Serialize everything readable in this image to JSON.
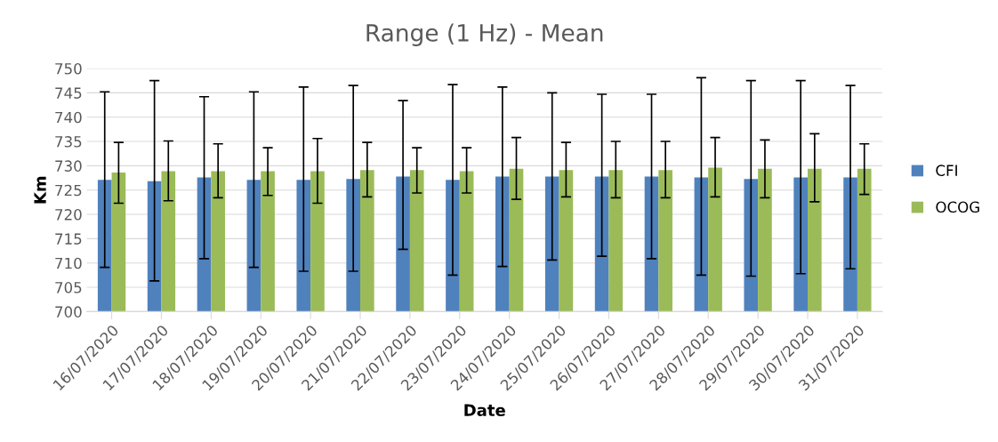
{
  "chart_data": {
    "type": "bar",
    "title": "Range (1 Hz) - Mean",
    "xlabel": "Date",
    "ylabel": "Km",
    "categories": [
      "16/07/2020",
      "17/07/2020",
      "18/07/2020",
      "19/07/2020",
      "20/07/2020",
      "21/07/2020",
      "22/07/2020",
      "23/07/2020",
      "24/07/2020",
      "25/07/2020",
      "26/07/2020",
      "27/07/2020",
      "28/07/2020",
      "29/07/2020",
      "30/07/2020",
      "31/07/2020"
    ],
    "series": [
      {
        "name": "CFI",
        "color": "#4f81bd",
        "values": [
          727.1,
          726.8,
          727.6,
          727.1,
          727.1,
          727.3,
          727.8,
          727.1,
          727.8,
          727.8,
          727.8,
          727.8,
          727.6,
          727.3,
          727.6,
          727.6
        ],
        "errors": [
          [
            709.1,
            745.2
          ],
          [
            706.3,
            747.5
          ],
          [
            710.9,
            744.2
          ],
          [
            709.1,
            745.2
          ],
          [
            708.3,
            746.2
          ],
          [
            708.3,
            746.5
          ],
          [
            712.8,
            743.4
          ],
          [
            707.5,
            746.7
          ],
          [
            709.3,
            746.2
          ],
          [
            710.6,
            745.0
          ],
          [
            711.4,
            744.7
          ],
          [
            710.9,
            744.7
          ],
          [
            707.5,
            748.1
          ],
          [
            707.3,
            747.5
          ],
          [
            707.8,
            747.5
          ],
          [
            708.8,
            746.5
          ]
        ]
      },
      {
        "name": "OCOG",
        "color": "#9bbb59",
        "values": [
          728.6,
          728.9,
          728.9,
          728.9,
          728.9,
          729.1,
          729.1,
          728.9,
          729.4,
          729.1,
          729.1,
          729.1,
          729.6,
          729.4,
          729.4,
          729.4
        ],
        "errors": [
          [
            722.3,
            734.8
          ],
          [
            722.8,
            735.1
          ],
          [
            723.4,
            734.5
          ],
          [
            723.9,
            733.7
          ],
          [
            722.3,
            735.6
          ],
          [
            723.6,
            734.8
          ],
          [
            724.4,
            733.7
          ],
          [
            724.4,
            733.7
          ],
          [
            723.1,
            735.8
          ],
          [
            723.6,
            734.8
          ],
          [
            723.4,
            735.0
          ],
          [
            723.4,
            735.0
          ],
          [
            723.6,
            735.8
          ],
          [
            723.4,
            735.3
          ],
          [
            722.6,
            736.6
          ],
          [
            724.1,
            734.5
          ]
        ]
      }
    ],
    "ylim": [
      700,
      750
    ],
    "yticks": [
      700,
      705,
      710,
      715,
      720,
      725,
      730,
      735,
      740,
      745,
      750
    ],
    "grid": "y",
    "legend": "right"
  }
}
